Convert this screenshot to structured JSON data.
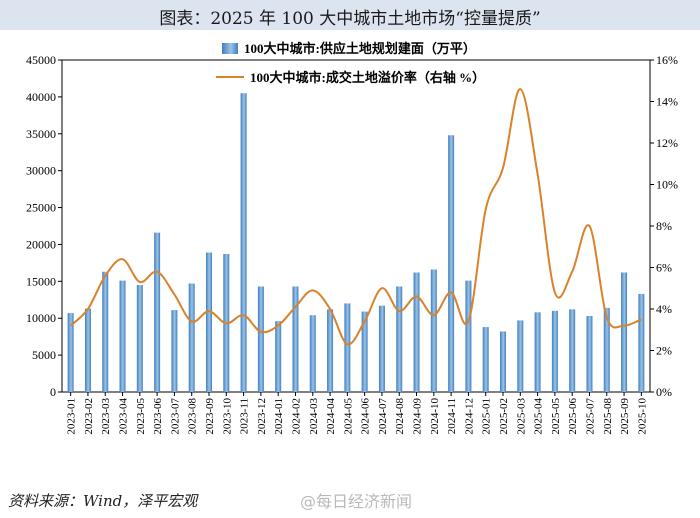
{
  "title": "图表：2025 年 100 大中城市土地市场“控量提质”",
  "source": "资料来源：Wind，泽平宏观",
  "watermark": "@每日经济新闻",
  "colors": {
    "bar": "#3f7fbf",
    "bar_light": "#9cc3e6",
    "line": "#d9822b",
    "title_band": "#dce4f0"
  },
  "chart_data": {
    "type": "bar",
    "categories": [
      "2023-01",
      "2023-02",
      "2023-03",
      "2023-04",
      "2023-05",
      "2023-06",
      "2023-07",
      "2023-08",
      "2023-09",
      "2023-10",
      "2023-11",
      "2023-12",
      "2024-01",
      "2024-02",
      "2024-03",
      "2024-04",
      "2024-05",
      "2024-06",
      "2024-07",
      "2024-08",
      "2024-09",
      "2024-10",
      "2024-11",
      "2024-12",
      "2025-01",
      "2025-02",
      "2025-03",
      "2025-04",
      "2025-05",
      "2025-06",
      "2025-07",
      "2025-08",
      "2025-09",
      "2025-10"
    ],
    "series": [
      {
        "name": "100大中城市:供应土地规划建面（万平）",
        "type": "bar",
        "axis": "left",
        "values": [
          10700,
          11300,
          16300,
          15100,
          14500,
          21600,
          11100,
          14700,
          18900,
          18700,
          40500,
          14300,
          9600,
          14300,
          10400,
          11200,
          12000,
          10900,
          11700,
          14300,
          16200,
          16600,
          34800,
          15100,
          8800,
          8200,
          9700,
          10800,
          11000,
          11200,
          10300,
          11400,
          16200,
          13300
        ]
      },
      {
        "name": "100大中城市:成交土地溢价率（右轴 %）",
        "type": "line",
        "axis": "right",
        "values": [
          3.2,
          4.0,
          5.6,
          6.4,
          5.3,
          5.8,
          4.7,
          3.4,
          3.9,
          3.3,
          3.7,
          2.9,
          3.2,
          4.1,
          4.9,
          4.0,
          2.3,
          3.4,
          5.0,
          3.9,
          4.6,
          3.7,
          4.8,
          3.4,
          8.8,
          10.8,
          14.6,
          10.5,
          4.8,
          5.8,
          8.0,
          3.6,
          3.2,
          3.5
        ]
      }
    ],
    "left_axis": {
      "ylim": [
        0,
        45000
      ],
      "ticks": [
        0,
        5000,
        10000,
        15000,
        20000,
        25000,
        30000,
        35000,
        40000,
        45000
      ]
    },
    "right_axis": {
      "ylim": [
        0,
        16
      ],
      "ticks": [
        "0%",
        "2%",
        "4%",
        "6%",
        "8%",
        "10%",
        "12%",
        "14%",
        "16%"
      ]
    },
    "legend": [
      "100大中城市:供应土地规划建面（万平）",
      "100大中城市:成交土地溢价率（右轴 %）"
    ],
    "legend_placement": "top-center",
    "grid": false
  }
}
